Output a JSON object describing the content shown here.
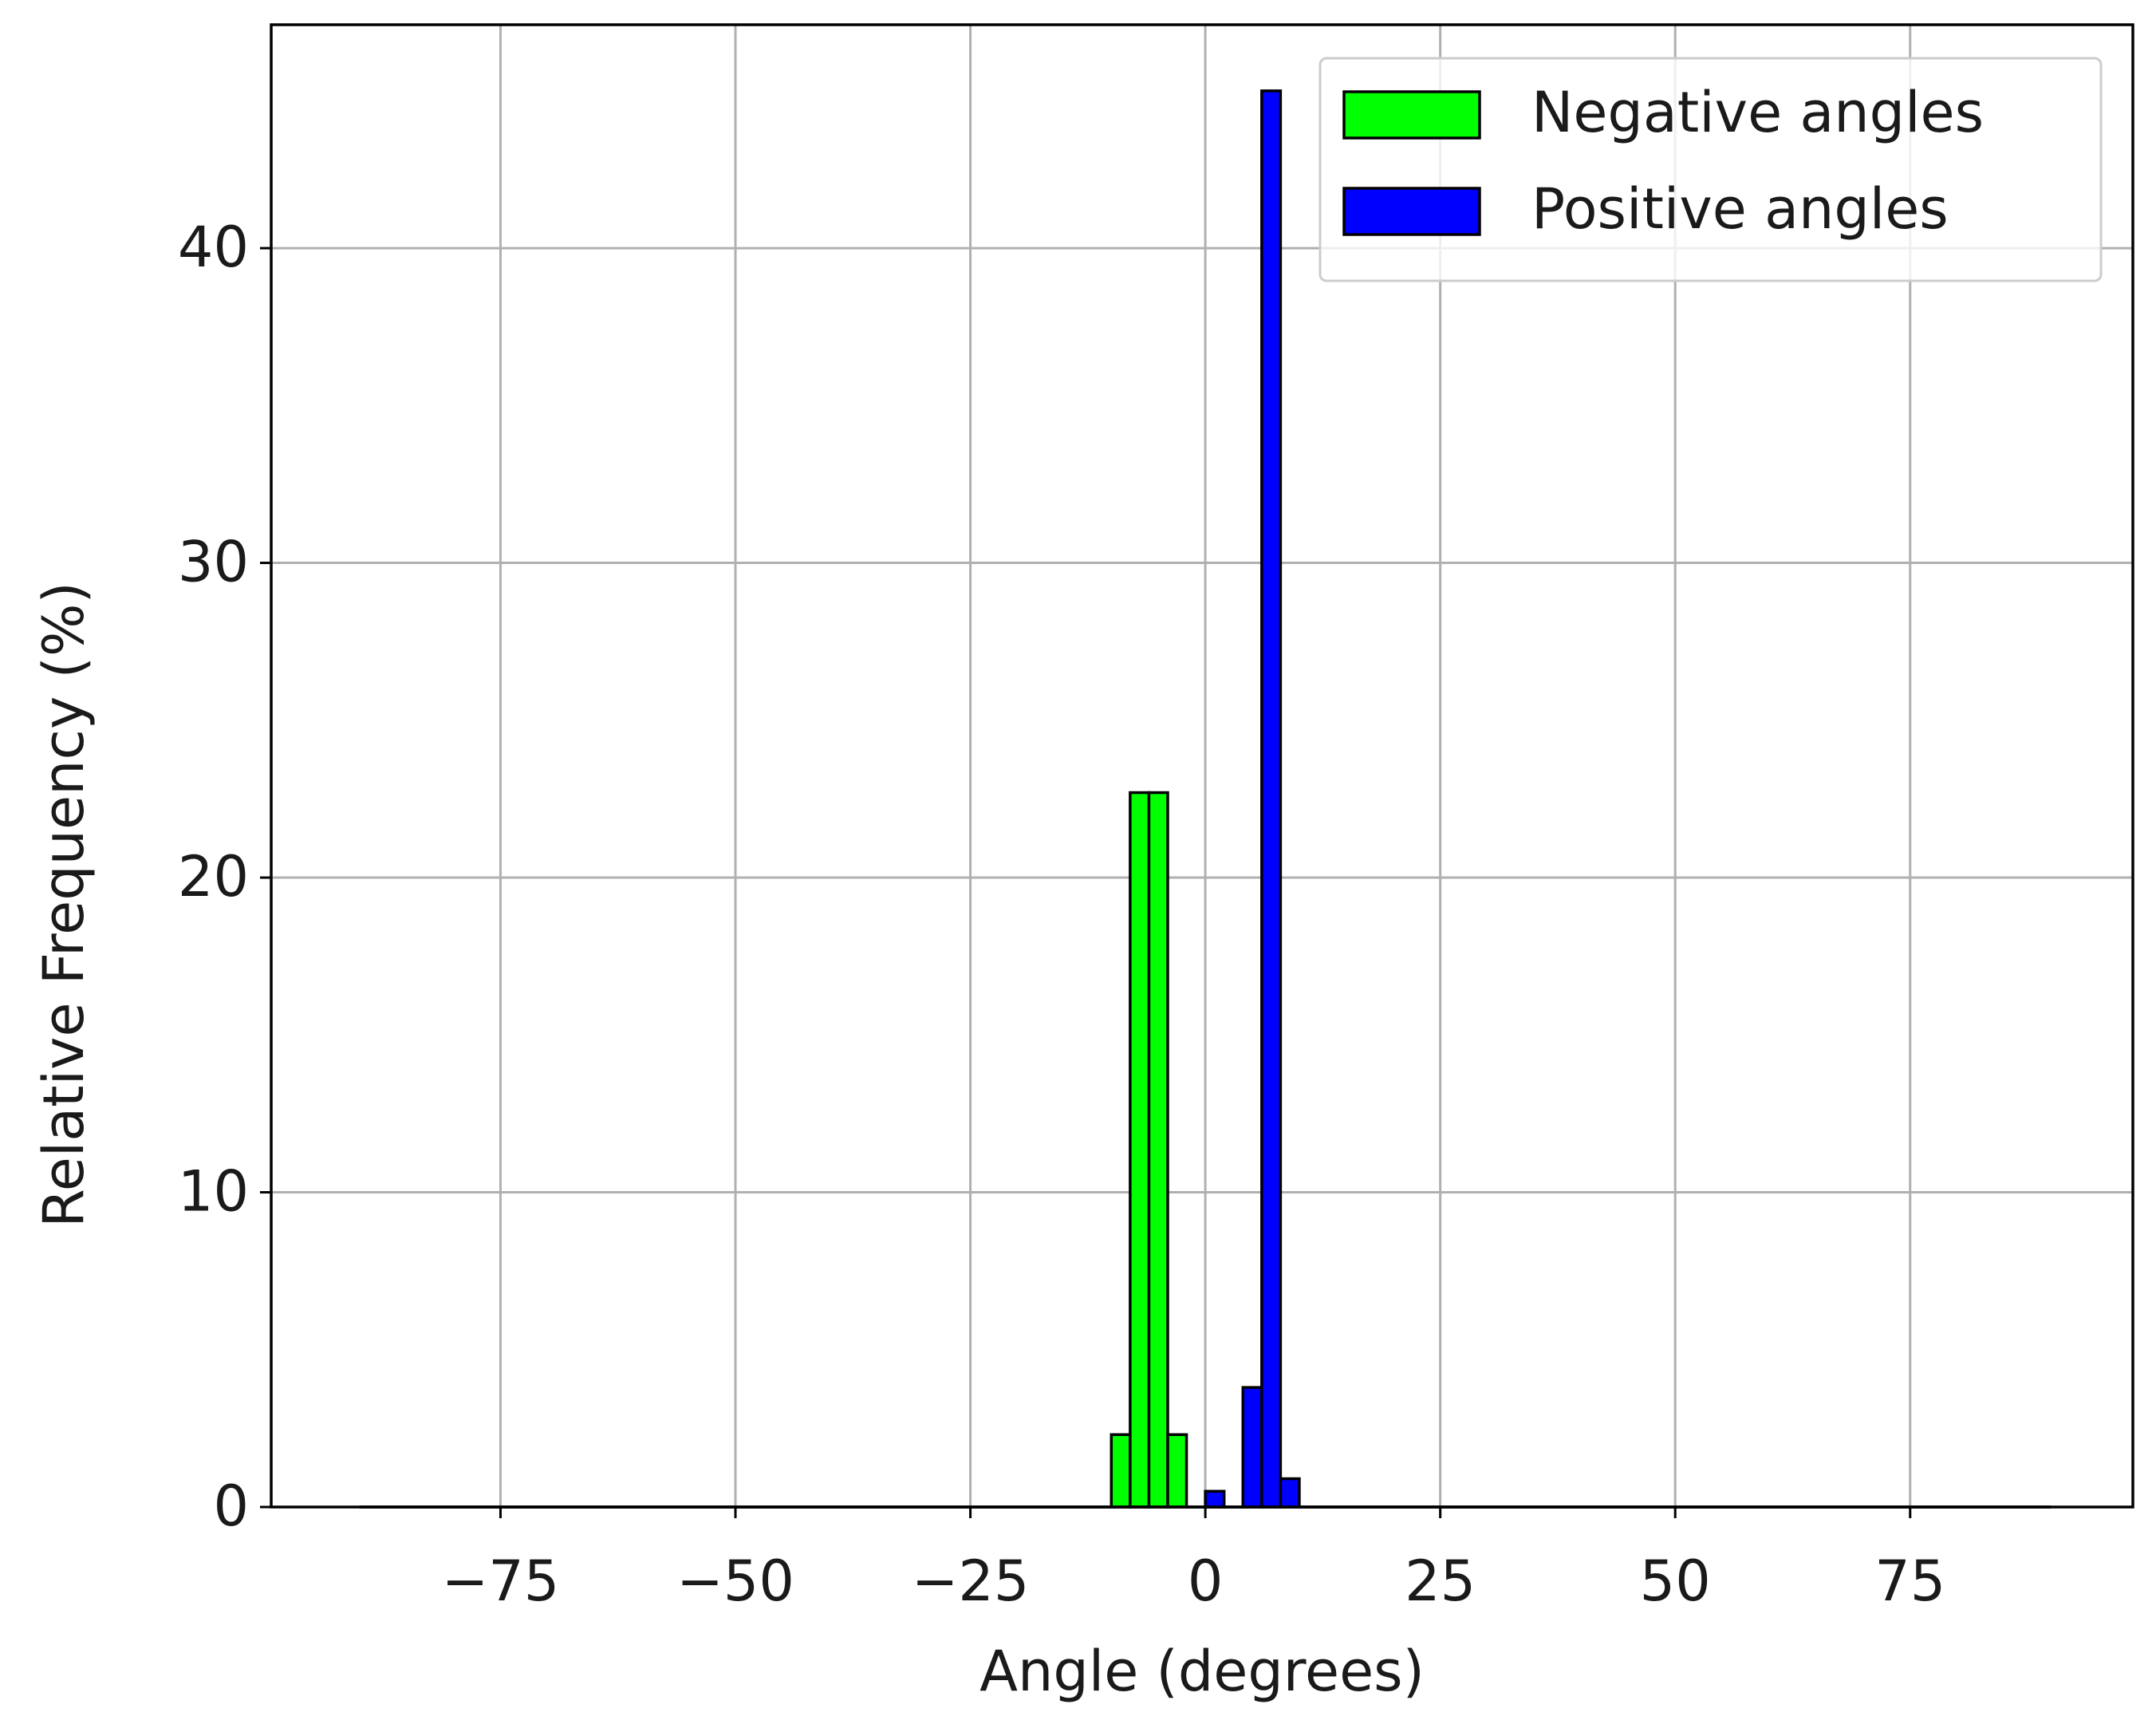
{
  "chart_data": {
    "type": "histogram",
    "xlabel": "Angle (degrees)",
    "ylabel": "Relative Frequency (%)",
    "bins": [
      -90,
      -88,
      -86,
      -84,
      -82,
      -80,
      -78,
      -76,
      -74,
      -72,
      -70,
      -68,
      -66,
      -64,
      -62,
      -60,
      -58,
      -56,
      -54,
      -52,
      -50,
      -48,
      -46,
      -44,
      -42,
      -40,
      -38,
      -36,
      -34,
      -32,
      -30,
      -28,
      -26,
      -24,
      -22,
      -20,
      -18,
      -16,
      -14,
      -12,
      -10,
      -8,
      -6,
      -4,
      -2,
      0,
      2,
      4,
      6,
      8,
      10,
      12,
      14,
      16,
      18,
      20,
      22,
      24,
      26,
      28,
      30,
      32,
      34,
      36,
      38,
      40,
      42,
      44,
      46,
      48,
      50,
      52,
      54,
      56,
      58,
      60,
      62,
      64,
      66,
      68,
      70,
      72,
      74,
      76,
      78,
      80,
      82,
      84,
      86,
      88,
      90
    ],
    "series": [
      {
        "name": "Negative angles",
        "color": "#00ff00",
        "values": [
          0,
          0,
          0,
          0,
          0,
          0,
          0,
          0,
          0,
          0,
          0,
          0,
          0,
          0,
          0,
          0,
          0,
          0,
          0,
          0,
          0,
          0,
          0,
          0,
          0,
          0,
          0,
          0,
          0,
          0,
          0,
          0,
          0,
          0,
          0,
          0,
          0,
          0,
          0,
          0,
          2.3,
          22.7,
          22.7,
          2.3,
          0,
          0,
          0,
          0,
          0,
          0,
          0,
          0,
          0,
          0,
          0,
          0,
          0,
          0,
          0,
          0,
          0,
          0,
          0,
          0,
          0,
          0,
          0,
          0,
          0,
          0,
          0,
          0,
          0,
          0,
          0,
          0,
          0,
          0,
          0,
          0,
          0,
          0,
          0,
          0,
          0,
          0,
          0,
          0,
          0,
          0
        ]
      },
      {
        "name": "Positive angles",
        "color": "#0000ff",
        "values": [
          0,
          0,
          0,
          0,
          0,
          0,
          0,
          0,
          0,
          0,
          0,
          0,
          0,
          0,
          0,
          0,
          0,
          0,
          0,
          0,
          0,
          0,
          0,
          0,
          0,
          0,
          0,
          0,
          0,
          0,
          0,
          0,
          0,
          0,
          0,
          0,
          0,
          0,
          0,
          0,
          0,
          0,
          0,
          0,
          0,
          0.5,
          0,
          3.8,
          45,
          0.9,
          0,
          0,
          0,
          0,
          0,
          0,
          0,
          0,
          0,
          0,
          0,
          0,
          0,
          0,
          0,
          0,
          0,
          0,
          0,
          0,
          0,
          0,
          0,
          0,
          0,
          0,
          0,
          0,
          0,
          0,
          0,
          0,
          0,
          0,
          0,
          0,
          0,
          0,
          0,
          0
        ]
      }
    ],
    "xlim": [
      -99.4,
      98.7
    ],
    "ylim": [
      0,
      47.1
    ],
    "xticks": [
      {
        "value": -75,
        "label": "−75"
      },
      {
        "value": -50,
        "label": "−50"
      },
      {
        "value": -25,
        "label": "−25"
      },
      0,
      25,
      50,
      75
    ],
    "yticks": [
      0,
      10,
      20,
      30,
      40
    ],
    "grid": true,
    "legend": "upper right"
  }
}
